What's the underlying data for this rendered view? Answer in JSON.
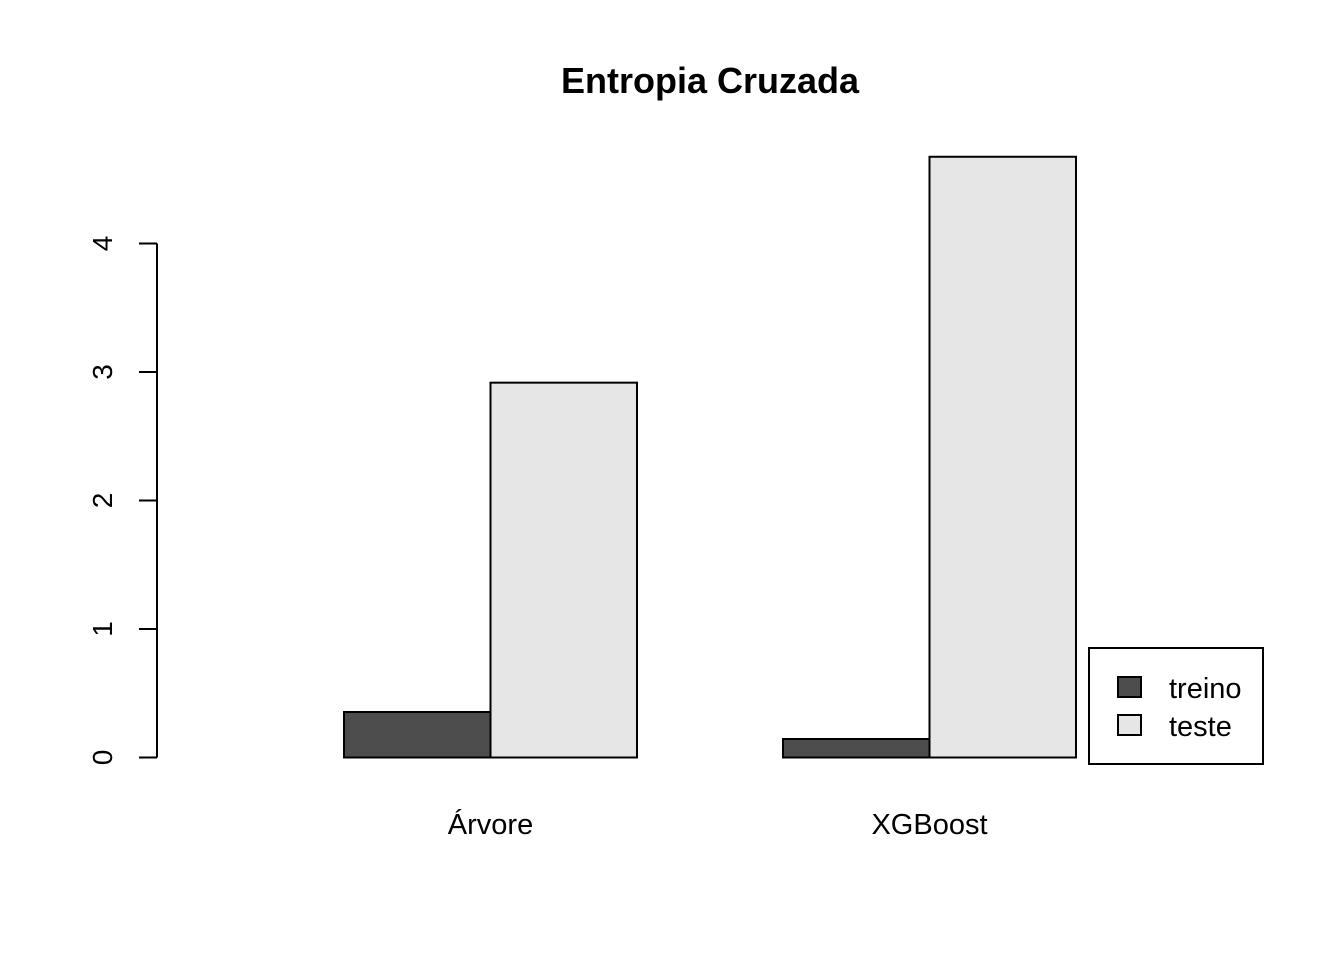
{
  "chart_data": {
    "type": "bar",
    "title": "Entropia Cruzada",
    "xlabel": "",
    "ylabel": "",
    "categories": [
      "Árvore",
      "XGBoost"
    ],
    "series": [
      {
        "name": "treino",
        "values": [
          0.354,
          0.144
        ],
        "color": "#4d4d4d"
      },
      {
        "name": "teste",
        "values": [
          2.917,
          4.675
        ],
        "color": "#e6e6e6"
      }
    ],
    "yticks": [
      0,
      1,
      2,
      3,
      4
    ],
    "ylim": [
      0,
      4.86
    ],
    "grid": false,
    "legend_position": "bottom-right",
    "bar_mode": "grouped"
  }
}
